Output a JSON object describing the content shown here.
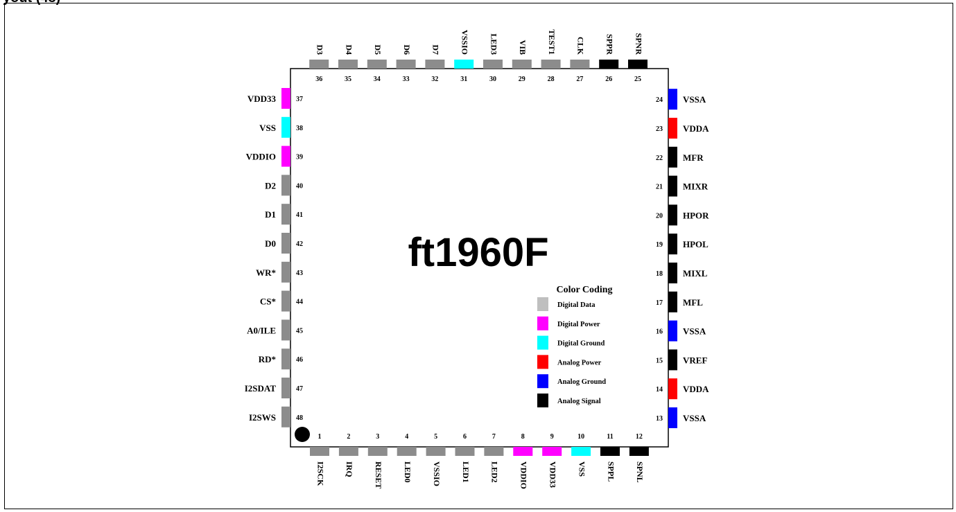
{
  "page_title": "yout (48)",
  "chip": {
    "name": "ft1960F",
    "pin1_marker": "pin-1-dot"
  },
  "colors": {
    "digital_data": "#8c8c8c",
    "digital_power": "#ff00ff",
    "digital_ground": "#00ffff",
    "analog_power": "#ff0000",
    "analog_ground": "#0000ff",
    "analog_signal": "#000000",
    "legend_digital_data": "#bfbfbf"
  },
  "legend": {
    "title": "Color Coding",
    "items": [
      {
        "label": "Digital Data",
        "color": "#bfbfbf"
      },
      {
        "label": "Digital Power",
        "color": "#ff00ff"
      },
      {
        "label": "Digital Ground",
        "color": "#00ffff"
      },
      {
        "label": "Analog Power",
        "color": "#ff0000"
      },
      {
        "label": "Analog Ground",
        "color": "#0000ff"
      },
      {
        "label": "Analog Signal",
        "color": "#000000"
      }
    ]
  },
  "pins": {
    "bottom": [
      {
        "num": "1",
        "name": "I2SCK",
        "type": "digital_data"
      },
      {
        "num": "2",
        "name": "IRQ",
        "type": "digital_data"
      },
      {
        "num": "3",
        "name": "RESET",
        "type": "digital_data"
      },
      {
        "num": "4",
        "name": "LED0",
        "type": "digital_data"
      },
      {
        "num": "5",
        "name": "VSSIO",
        "type": "digital_data"
      },
      {
        "num": "6",
        "name": "LED1",
        "type": "digital_data"
      },
      {
        "num": "7",
        "name": "LED2",
        "type": "digital_data"
      },
      {
        "num": "8",
        "name": "VDDIO",
        "type": "digital_power"
      },
      {
        "num": "9",
        "name": "VDD33",
        "type": "digital_power"
      },
      {
        "num": "10",
        "name": "VSS",
        "type": "digital_ground"
      },
      {
        "num": "11",
        "name": "SPPL",
        "type": "analog_signal"
      },
      {
        "num": "12",
        "name": "SPNL",
        "type": "analog_signal"
      }
    ],
    "right": [
      {
        "num": "13",
        "name": "VSSA",
        "type": "analog_ground"
      },
      {
        "num": "14",
        "name": "VDDA",
        "type": "analog_power"
      },
      {
        "num": "15",
        "name": "VREF",
        "type": "analog_signal"
      },
      {
        "num": "16",
        "name": "VSSA",
        "type": "analog_ground"
      },
      {
        "num": "17",
        "name": "MFL",
        "type": "analog_signal"
      },
      {
        "num": "18",
        "name": "MIXL",
        "type": "analog_signal"
      },
      {
        "num": "19",
        "name": "HPOL",
        "type": "analog_signal"
      },
      {
        "num": "20",
        "name": "HPOR",
        "type": "analog_signal"
      },
      {
        "num": "21",
        "name": "MIXR",
        "type": "analog_signal"
      },
      {
        "num": "22",
        "name": "MFR",
        "type": "analog_signal"
      },
      {
        "num": "23",
        "name": "VDDA",
        "type": "analog_power"
      },
      {
        "num": "24",
        "name": "VSSA",
        "type": "analog_ground"
      }
    ],
    "top": [
      {
        "num": "25",
        "name": "SPNR",
        "type": "analog_signal"
      },
      {
        "num": "26",
        "name": "SPPR",
        "type": "analog_signal"
      },
      {
        "num": "27",
        "name": "CLK",
        "type": "digital_data"
      },
      {
        "num": "28",
        "name": "TEST1",
        "type": "digital_data"
      },
      {
        "num": "29",
        "name": "VIB",
        "type": "digital_data"
      },
      {
        "num": "30",
        "name": "LED3",
        "type": "digital_data"
      },
      {
        "num": "31",
        "name": "VSSIO",
        "type": "digital_ground"
      },
      {
        "num": "32",
        "name": "D7",
        "type": "digital_data"
      },
      {
        "num": "33",
        "name": "D6",
        "type": "digital_data"
      },
      {
        "num": "34",
        "name": "D5",
        "type": "digital_data"
      },
      {
        "num": "35",
        "name": "D4",
        "type": "digital_data"
      },
      {
        "num": "36",
        "name": "D3",
        "type": "digital_data"
      }
    ],
    "left": [
      {
        "num": "37",
        "name": "VDD33",
        "type": "digital_power"
      },
      {
        "num": "38",
        "name": "VSS",
        "type": "digital_ground"
      },
      {
        "num": "39",
        "name": "VDDIO",
        "type": "digital_power"
      },
      {
        "num": "40",
        "name": "D2",
        "type": "digital_data"
      },
      {
        "num": "41",
        "name": "D1",
        "type": "digital_data"
      },
      {
        "num": "42",
        "name": "D0",
        "type": "digital_data"
      },
      {
        "num": "43",
        "name": "WR*",
        "type": "digital_data"
      },
      {
        "num": "44",
        "name": "CS*",
        "type": "digital_data"
      },
      {
        "num": "45",
        "name": "A0/ILE",
        "type": "digital_data"
      },
      {
        "num": "46",
        "name": "RD*",
        "type": "digital_data"
      },
      {
        "num": "47",
        "name": "I2SDAT",
        "type": "digital_data"
      },
      {
        "num": "48",
        "name": "I2SWS",
        "type": "digital_data"
      }
    ]
  }
}
